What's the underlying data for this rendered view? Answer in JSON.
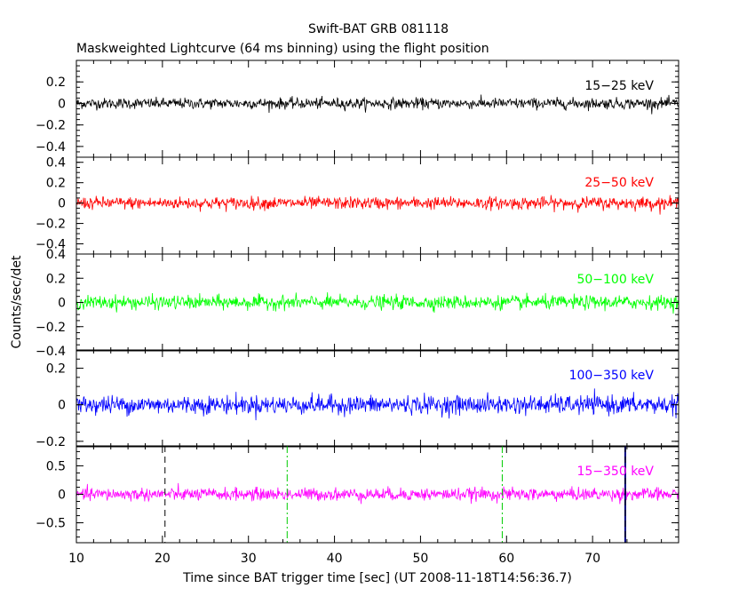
{
  "title": "Swift-BAT GRB 081118",
  "subtitle": "Maskweighted Lightcurve (64 ms binning) using the flight position",
  "ylabel": "Counts/sec/det",
  "xlabel": "Time since BAT trigger time [sec] (UT 2008-11-18T14:56:36.7)",
  "chart_data": {
    "type": "line",
    "title": "Swift-BAT GRB 081118",
    "subtitle": "Maskweighted Lightcurve (64 ms binning) using the flight position",
    "xlabel": "Time since BAT trigger time [sec] (UT 2008-11-18T14:56:36.7)",
    "ylabel": "Counts/sec/det",
    "xlim": [
      10,
      80
    ],
    "xticks": [
      10,
      20,
      30,
      40,
      50,
      60,
      70
    ],
    "grid": false,
    "panels": [
      {
        "name": "15-25 keV",
        "label": "15−25 keV",
        "color": "#000000",
        "ylim": [
          -0.5,
          0.4
        ],
        "yticks": [
          0.2,
          0,
          -0.2,
          -0.4
        ],
        "ytick_labels": [
          "0.2",
          "0",
          "−0.2",
          "−0.4"
        ],
        "noise_amplitude": 0.025,
        "mean": 0.0
      },
      {
        "name": "25-50 keV",
        "label": "25−50 keV",
        "color": "#ff0000",
        "ylim": [
          -0.5,
          0.45
        ],
        "yticks": [
          0.4,
          0.2,
          0,
          -0.2,
          -0.4
        ],
        "ytick_labels": [
          "0.4",
          "0.2",
          "0",
          "−0.2",
          "−0.4"
        ],
        "noise_amplitude": 0.03,
        "mean": 0.0
      },
      {
        "name": "50-100 keV",
        "label": "50−100 keV",
        "color": "#00ff00",
        "ylim": [
          -0.4,
          0.4
        ],
        "yticks": [
          0.4,
          0.2,
          0,
          -0.2,
          -0.4
        ],
        "ytick_labels": [
          "0.4",
          "0.2",
          "0",
          "−0.2",
          "−0.4"
        ],
        "noise_amplitude": 0.028,
        "mean": 0.0
      },
      {
        "name": "100-350 keV",
        "label": "100−350 keV",
        "color": "#0000ff",
        "ylim": [
          -0.23,
          0.3
        ],
        "yticks": [
          0.2,
          0,
          -0.2
        ],
        "ytick_labels": [
          "0.2",
          "0",
          "−0.2"
        ],
        "noise_amplitude": 0.025,
        "mean": 0.0
      },
      {
        "name": "15-350 keV",
        "label": "15−350 keV",
        "color": "#ff00ff",
        "ylim": [
          -0.85,
          0.85
        ],
        "yticks": [
          0.5,
          0,
          -0.5
        ],
        "ytick_labels": [
          "0.5",
          "0",
          "−0.5"
        ],
        "noise_amplitude": 0.055,
        "mean": 0.0,
        "vlines": [
          {
            "x": 20.3,
            "color": "#000000",
            "style": "dashed"
          },
          {
            "x": 34.5,
            "color": "#00cc00",
            "style": "dashdot"
          },
          {
            "x": 59.5,
            "color": "#00cc00",
            "style": "dashdot"
          },
          {
            "x": 73.8,
            "color": "#000080",
            "style": "solid-thick"
          },
          {
            "x": 73.8,
            "color": "#000000",
            "style": "dashed"
          }
        ]
      }
    ]
  }
}
